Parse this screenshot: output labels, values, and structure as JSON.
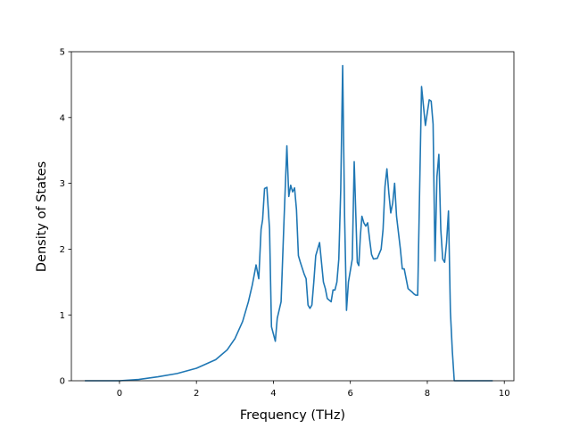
{
  "chart_data": {
    "type": "line",
    "title": "",
    "xlabel": "Frequency (THz)",
    "ylabel": "Density of States",
    "xlim": [
      -1.25,
      10.25
    ],
    "ylim": [
      0,
      5
    ],
    "x_ticks": [
      0,
      2,
      4,
      6,
      8,
      10
    ],
    "y_ticks": [
      0,
      1,
      2,
      3,
      4,
      5
    ],
    "x_tick_labels": [
      "0",
      "2",
      "4",
      "6",
      "8",
      "10"
    ],
    "y_tick_labels": [
      "0",
      "1",
      "2",
      "3",
      "4",
      "5"
    ],
    "grid": false,
    "legend": "none",
    "series": [
      {
        "color": "#1f77b4",
        "x": [
          -0.9,
          0.0,
          0.5,
          1.0,
          1.5,
          2.0,
          2.5,
          2.8,
          3.0,
          3.2,
          3.35,
          3.45,
          3.55,
          3.62,
          3.68,
          3.72,
          3.77,
          3.83,
          3.9,
          3.95,
          4.05,
          4.1,
          4.2,
          4.28,
          4.35,
          4.4,
          4.45,
          4.5,
          4.55,
          4.6,
          4.65,
          4.7,
          4.8,
          4.85,
          4.9,
          4.95,
          5.0,
          5.05,
          5.1,
          5.15,
          5.2,
          5.3,
          5.35,
          5.4,
          5.5,
          5.55,
          5.6,
          5.65,
          5.7,
          5.75,
          5.8,
          5.85,
          5.9,
          5.95,
          6.05,
          6.1,
          6.18,
          6.22,
          6.26,
          6.3,
          6.35,
          6.4,
          6.45,
          6.5,
          6.55,
          6.6,
          6.7,
          6.8,
          6.85,
          6.9,
          6.95,
          7.0,
          7.05,
          7.1,
          7.15,
          7.2,
          7.3,
          7.35,
          7.4,
          7.5,
          7.6,
          7.65,
          7.7,
          7.75,
          7.85,
          7.95,
          8.05,
          8.1,
          8.15,
          8.2,
          8.25,
          8.3,
          8.35,
          8.4,
          8.45,
          8.5,
          8.55,
          8.6,
          8.65,
          8.7,
          8.75,
          8.8,
          8.85,
          8.9,
          9.0,
          9.5,
          9.7
        ],
        "y": [
          0,
          0,
          0.02,
          0.06,
          0.11,
          0.19,
          0.32,
          0.47,
          0.64,
          0.9,
          1.2,
          1.45,
          1.76,
          1.55,
          2.3,
          2.45,
          2.92,
          2.94,
          2.3,
          0.82,
          0.6,
          0.95,
          1.2,
          2.5,
          3.57,
          2.8,
          2.97,
          2.87,
          2.93,
          2.6,
          1.9,
          1.8,
          1.62,
          1.55,
          1.15,
          1.1,
          1.15,
          1.5,
          1.9,
          2.0,
          2.1,
          1.5,
          1.4,
          1.25,
          1.2,
          1.38,
          1.38,
          1.5,
          1.85,
          2.9,
          4.79,
          2.5,
          1.07,
          1.5,
          1.85,
          3.33,
          1.8,
          1.75,
          2.2,
          2.5,
          2.4,
          2.35,
          2.4,
          2.15,
          1.92,
          1.85,
          1.86,
          2.0,
          2.3,
          2.95,
          3.22,
          2.85,
          2.55,
          2.7,
          3.0,
          2.5,
          2.0,
          1.7,
          1.7,
          1.4,
          1.35,
          1.32,
          1.3,
          1.3,
          4.47,
          3.88,
          4.27,
          4.25,
          3.9,
          1.82,
          3.1,
          3.44,
          2.3,
          1.85,
          1.8,
          2.1,
          2.58,
          1.05,
          0.45,
          0.0,
          0.0,
          0.0,
          0.0,
          0.0,
          0.0,
          0.0,
          0.0
        ]
      }
    ]
  }
}
